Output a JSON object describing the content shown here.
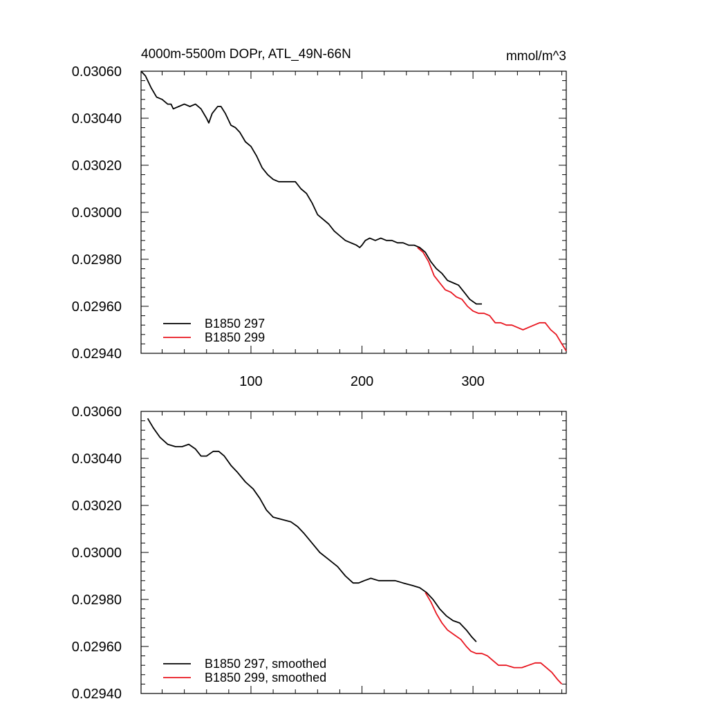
{
  "chart_data": [
    {
      "type": "line",
      "title": "4000m-5500m DOPr, ATL_49N-66N",
      "units": "mmol/m^3",
      "xlim": [
        1,
        384
      ],
      "ylim": [
        0.0294,
        0.0306
      ],
      "x_ticks": [
        100,
        200,
        300
      ],
      "x_tick_labels": [
        "100",
        "200",
        "300"
      ],
      "y_ticks": [
        0.0294,
        0.0296,
        0.0298,
        0.03,
        0.0302,
        0.0304,
        0.0306
      ],
      "y_tick_labels": [
        "0.02940",
        "0.02960",
        "0.02980",
        "0.03000",
        "0.03020",
        "0.03040",
        "0.03060"
      ],
      "legend_position": "bottom-left",
      "grid": false,
      "series": [
        {
          "name": "B1850 297",
          "color": "#000000",
          "points": [
            [
              1,
              0.0306
            ],
            [
              5,
              0.03058
            ],
            [
              10,
              0.03053
            ],
            [
              15,
              0.03049
            ],
            [
              20,
              0.03048
            ],
            [
              25,
              0.03046
            ],
            [
              28,
              0.03046
            ],
            [
              30,
              0.03044
            ],
            [
              35,
              0.03045
            ],
            [
              40,
              0.03046
            ],
            [
              45,
              0.03045
            ],
            [
              50,
              0.03046
            ],
            [
              55,
              0.03044
            ],
            [
              60,
              0.0304
            ],
            [
              62,
              0.03038
            ],
            [
              65,
              0.03042
            ],
            [
              70,
              0.03045
            ],
            [
              73,
              0.03045
            ],
            [
              77,
              0.03042
            ],
            [
              82,
              0.03037
            ],
            [
              86,
              0.03036
            ],
            [
              90,
              0.03034
            ],
            [
              95,
              0.0303
            ],
            [
              100,
              0.03028
            ],
            [
              105,
              0.03024
            ],
            [
              110,
              0.03019
            ],
            [
              115,
              0.03016
            ],
            [
              120,
              0.03014
            ],
            [
              125,
              0.03013
            ],
            [
              130,
              0.03013
            ],
            [
              135,
              0.03013
            ],
            [
              140,
              0.03013
            ],
            [
              145,
              0.0301
            ],
            [
              150,
              0.03008
            ],
            [
              155,
              0.03004
            ],
            [
              160,
              0.02999
            ],
            [
              165,
              0.02997
            ],
            [
              170,
              0.02995
            ],
            [
              175,
              0.02992
            ],
            [
              180,
              0.0299
            ],
            [
              185,
              0.02988
            ],
            [
              190,
              0.02987
            ],
            [
              195,
              0.02986
            ],
            [
              198,
              0.02985
            ],
            [
              200,
              0.02986
            ],
            [
              203,
              0.02988
            ],
            [
              207,
              0.02989
            ],
            [
              212,
              0.02988
            ],
            [
              217,
              0.02989
            ],
            [
              222,
              0.02988
            ],
            [
              227,
              0.02988
            ],
            [
              232,
              0.02987
            ],
            [
              237,
              0.02987
            ],
            [
              242,
              0.02986
            ],
            [
              247,
              0.02986
            ],
            [
              252,
              0.02985
            ],
            [
              257,
              0.02983
            ],
            [
              262,
              0.02979
            ],
            [
              267,
              0.02976
            ],
            [
              272,
              0.02974
            ],
            [
              277,
              0.02971
            ],
            [
              282,
              0.0297
            ],
            [
              287,
              0.02969
            ],
            [
              292,
              0.02966
            ],
            [
              297,
              0.02963
            ],
            [
              303,
              0.02961
            ],
            [
              308,
              0.02961
            ]
          ]
        },
        {
          "name": "B1850 299",
          "color": "#e8141e",
          "points": [
            [
              250,
              0.02985
            ],
            [
              255,
              0.02983
            ],
            [
              260,
              0.02979
            ],
            [
              265,
              0.02973
            ],
            [
              270,
              0.0297
            ],
            [
              275,
              0.02967
            ],
            [
              280,
              0.02966
            ],
            [
              285,
              0.02964
            ],
            [
              290,
              0.02963
            ],
            [
              295,
              0.0296
            ],
            [
              300,
              0.02958
            ],
            [
              305,
              0.02957
            ],
            [
              310,
              0.02957
            ],
            [
              315,
              0.02956
            ],
            [
              320,
              0.02953
            ],
            [
              325,
              0.02953
            ],
            [
              330,
              0.02952
            ],
            [
              335,
              0.02952
            ],
            [
              340,
              0.02951
            ],
            [
              345,
              0.0295
            ],
            [
              350,
              0.02951
            ],
            [
              355,
              0.02952
            ],
            [
              360,
              0.02953
            ],
            [
              365,
              0.02953
            ],
            [
              370,
              0.0295
            ],
            [
              375,
              0.02948
            ],
            [
              380,
              0.02944
            ],
            [
              384,
              0.02941
            ]
          ]
        }
      ]
    },
    {
      "type": "line",
      "title": "",
      "xlim": [
        1,
        384
      ],
      "ylim": [
        0.0294,
        0.0306
      ],
      "x_ticks": [
        100,
        200,
        300
      ],
      "y_ticks": [
        0.0294,
        0.0296,
        0.0298,
        0.03,
        0.0302,
        0.0304,
        0.0306
      ],
      "y_tick_labels": [
        "0.02940",
        "0.02960",
        "0.02980",
        "0.03000",
        "0.03020",
        "0.03040",
        "0.03060"
      ],
      "legend_position": "bottom-left",
      "grid": false,
      "series": [
        {
          "name": "B1850 297, smoothed",
          "color": "#000000",
          "points": [
            [
              7,
              0.03057
            ],
            [
              12,
              0.03053
            ],
            [
              18,
              0.03049
            ],
            [
              25,
              0.03046
            ],
            [
              32,
              0.03045
            ],
            [
              38,
              0.03045
            ],
            [
              44,
              0.03046
            ],
            [
              50,
              0.03044
            ],
            [
              55,
              0.03041
            ],
            [
              60,
              0.03041
            ],
            [
              66,
              0.03043
            ],
            [
              71,
              0.03043
            ],
            [
              76,
              0.03041
            ],
            [
              82,
              0.03037
            ],
            [
              88,
              0.03034
            ],
            [
              95,
              0.0303
            ],
            [
              102,
              0.03027
            ],
            [
              108,
              0.03023
            ],
            [
              114,
              0.03018
            ],
            [
              120,
              0.03015
            ],
            [
              128,
              0.03014
            ],
            [
              136,
              0.03013
            ],
            [
              142,
              0.03011
            ],
            [
              148,
              0.03008
            ],
            [
              155,
              0.03004
            ],
            [
              162,
              0.03
            ],
            [
              170,
              0.02997
            ],
            [
              178,
              0.02994
            ],
            [
              185,
              0.0299
            ],
            [
              192,
              0.02987
            ],
            [
              197,
              0.02987
            ],
            [
              202,
              0.02988
            ],
            [
              208,
              0.02989
            ],
            [
              215,
              0.02988
            ],
            [
              222,
              0.02988
            ],
            [
              230,
              0.02988
            ],
            [
              237,
              0.02987
            ],
            [
              245,
              0.02986
            ],
            [
              252,
              0.02985
            ],
            [
              258,
              0.02983
            ],
            [
              264,
              0.0298
            ],
            [
              270,
              0.02976
            ],
            [
              276,
              0.02973
            ],
            [
              282,
              0.02971
            ],
            [
              288,
              0.0297
            ],
            [
              294,
              0.02967
            ],
            [
              299,
              0.02964
            ],
            [
              303,
              0.02962
            ]
          ]
        },
        {
          "name": "B1850 299, smoothed",
          "color": "#e8141e",
          "points": [
            [
              257,
              0.02983
            ],
            [
              262,
              0.02979
            ],
            [
              267,
              0.02974
            ],
            [
              272,
              0.0297
            ],
            [
              277,
              0.02967
            ],
            [
              283,
              0.02965
            ],
            [
              289,
              0.02963
            ],
            [
              294,
              0.0296
            ],
            [
              298,
              0.02958
            ],
            [
              303,
              0.02957
            ],
            [
              308,
              0.02957
            ],
            [
              313,
              0.02956
            ],
            [
              318,
              0.02954
            ],
            [
              323,
              0.02952
            ],
            [
              330,
              0.02952
            ],
            [
              337,
              0.02951
            ],
            [
              344,
              0.02951
            ],
            [
              350,
              0.02952
            ],
            [
              356,
              0.02953
            ],
            [
              361,
              0.02953
            ],
            [
              366,
              0.02951
            ],
            [
              371,
              0.02949
            ],
            [
              376,
              0.02946
            ],
            [
              380,
              0.02944
            ]
          ]
        }
      ]
    }
  ]
}
